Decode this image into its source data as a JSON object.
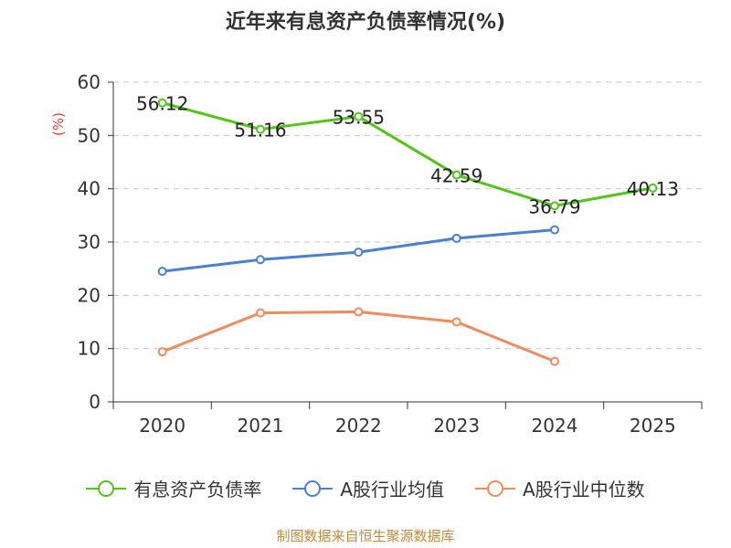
{
  "title": "近年来有息资产负债率情况(%)",
  "source": "制图数据来自恒生聚源数据库",
  "chart_data": {
    "type": "line",
    "title": "近年来有息资产负债率情况(%)",
    "ylabel": "(%)",
    "xlabel": "",
    "categories": [
      "2020",
      "2021",
      "2022",
      "2023",
      "2024",
      "2025"
    ],
    "ylim": [
      0,
      60
    ],
    "yticks": [
      0,
      10,
      20,
      30,
      40,
      50,
      60
    ],
    "grid": true,
    "legend_position": "bottom",
    "series": [
      {
        "name": "有息资产负债率",
        "color": "#52c41a",
        "values": [
          56.12,
          51.16,
          53.55,
          42.59,
          36.79,
          40.13
        ],
        "labels": [
          "56.12",
          "51.16",
          "53.55",
          "42.59",
          "36.79",
          "40.13"
        ]
      },
      {
        "name": "A股行业均值",
        "color": "#4a7fd6",
        "values": [
          24.5,
          26.7,
          28.1,
          30.7,
          32.3,
          null
        ],
        "labels": []
      },
      {
        "name": "A股行业中位数",
        "color": "#f28b5b",
        "values": [
          9.4,
          16.7,
          16.9,
          15.0,
          7.6,
          null
        ],
        "labels": []
      }
    ]
  }
}
